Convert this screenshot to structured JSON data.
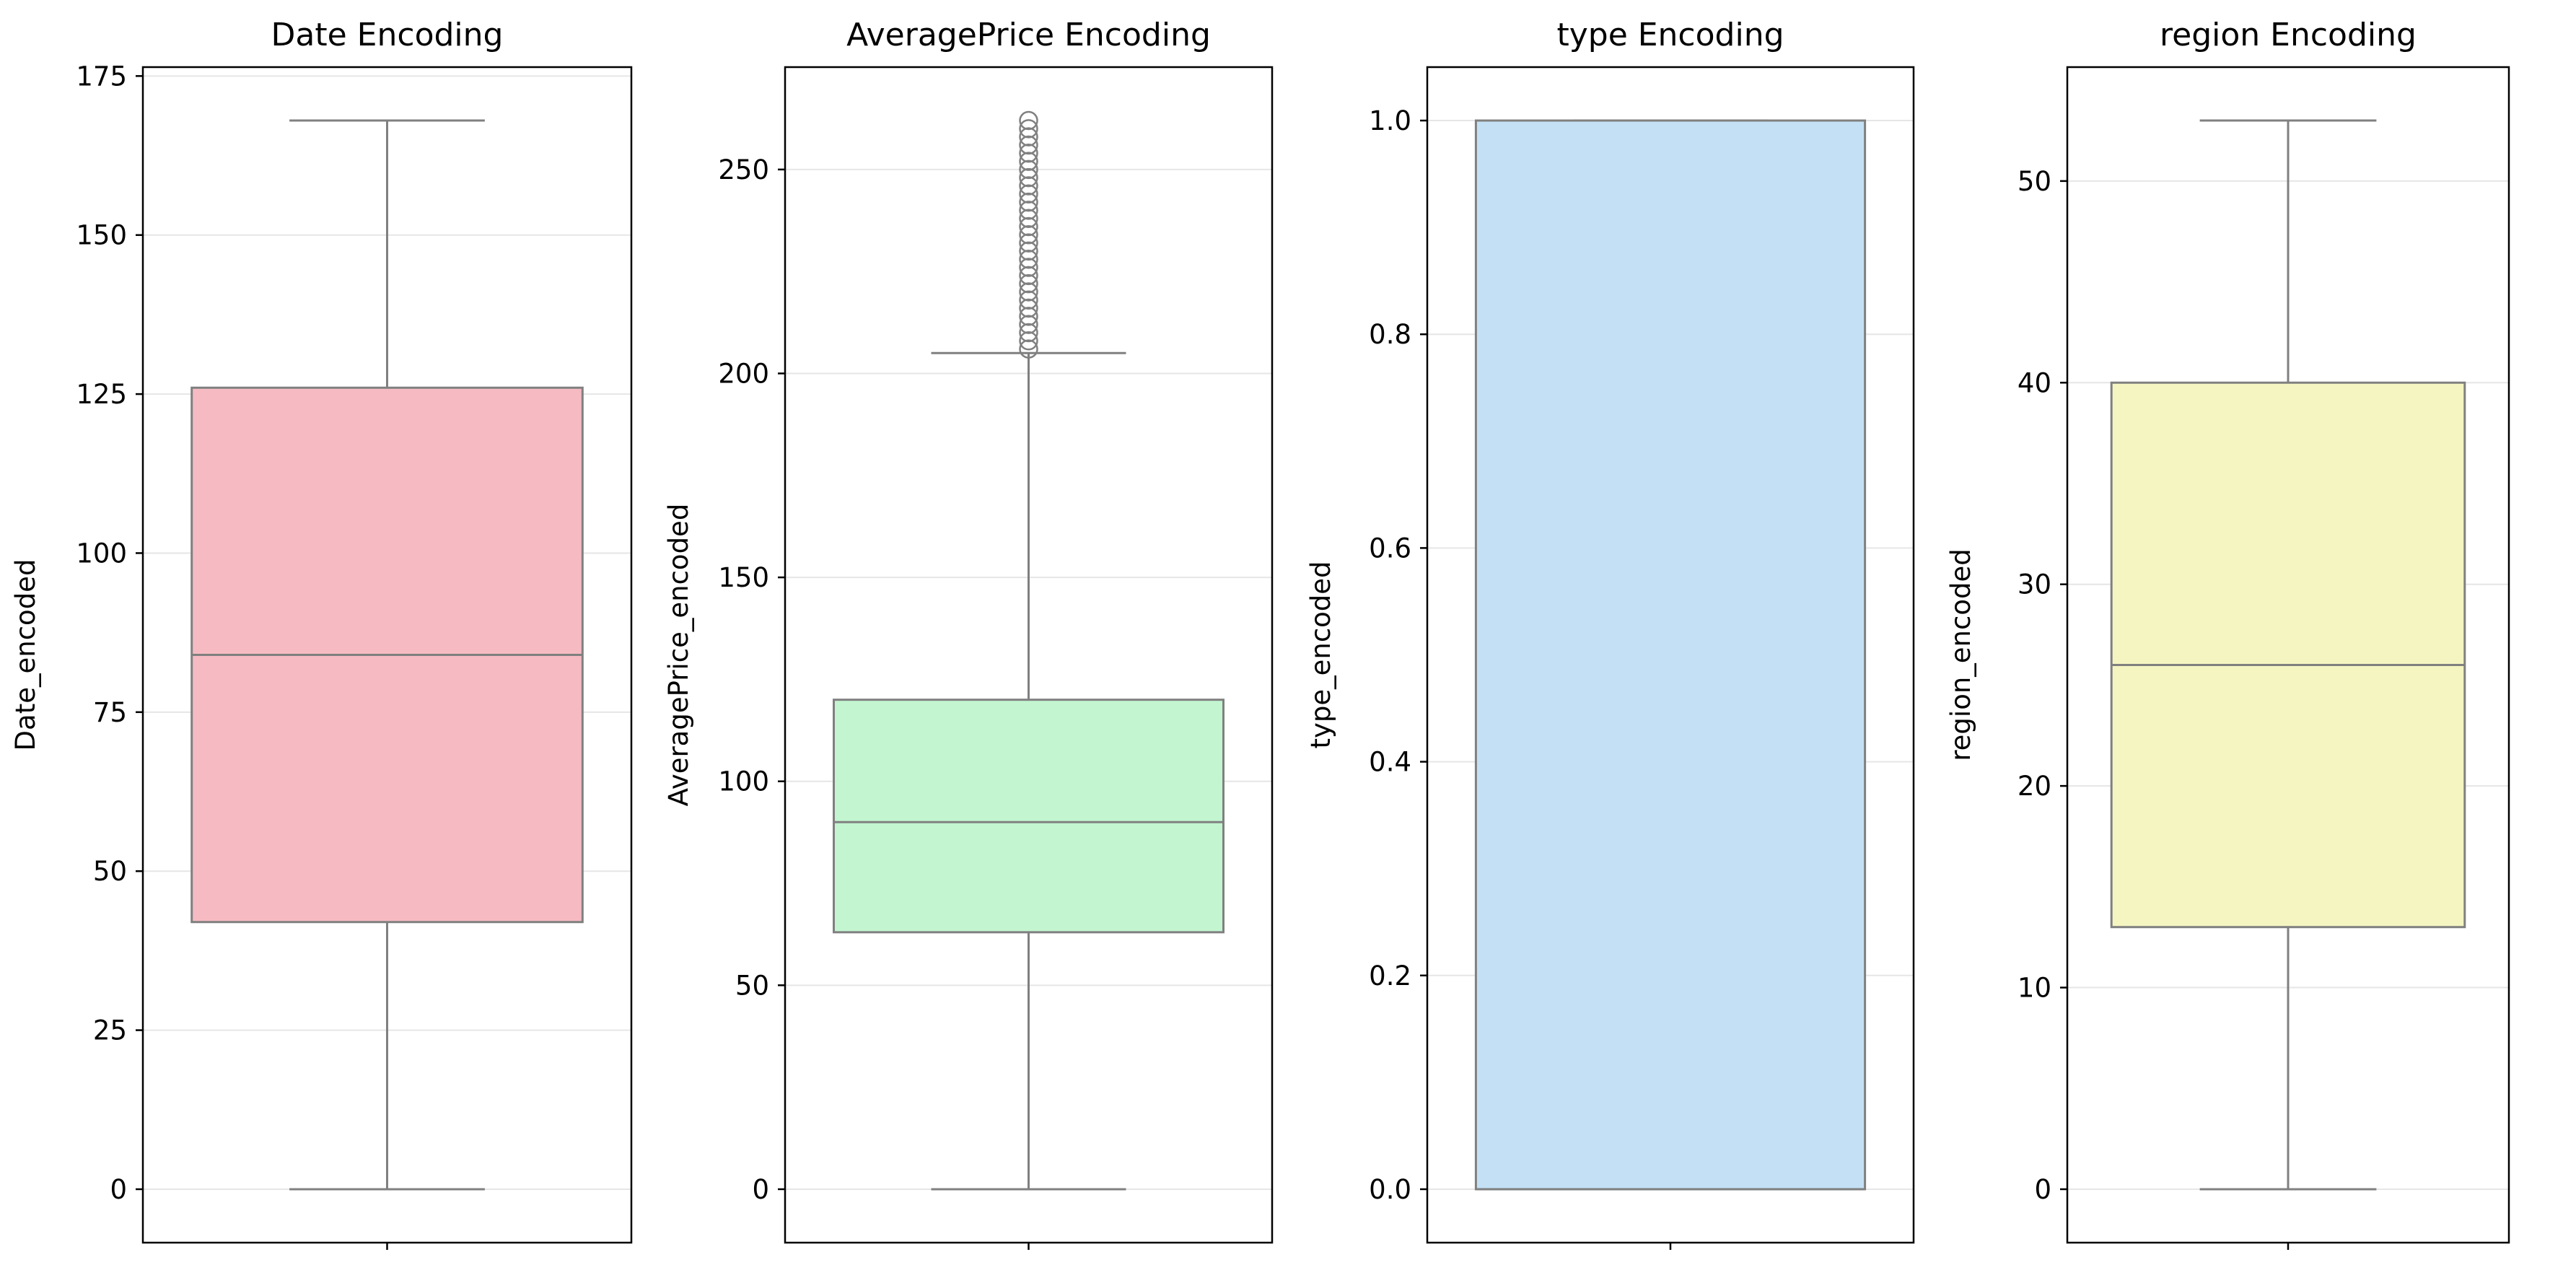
{
  "chart_data": [
    {
      "type": "box",
      "title": "Date Encoding",
      "xlabel": "",
      "ylabel": "Date_encoded",
      "ylim": [
        -8.4,
        176.4
      ],
      "yticks": [
        0,
        25,
        50,
        75,
        100,
        125,
        150,
        175
      ],
      "grid": true,
      "color": "#f6bbc2",
      "box": {
        "whisker_low": 0,
        "q1": 42,
        "median": 84,
        "q3": 126,
        "whisker_high": 168
      },
      "outliers": []
    },
    {
      "type": "box",
      "title": "AveragePrice Encoding",
      "xlabel": "",
      "ylabel": "AveragePrice_encoded",
      "ylim": [
        -13.1,
        275.1
      ],
      "yticks": [
        0,
        50,
        100,
        150,
        200,
        250
      ],
      "grid": true,
      "color": "#c2f5d0",
      "box": {
        "whisker_low": 0,
        "q1": 63,
        "median": 90,
        "q3": 120,
        "whisker_high": 205
      },
      "outliers": [
        206,
        208,
        210,
        212,
        214,
        216,
        218,
        220,
        222,
        224,
        226,
        228,
        230,
        232,
        234,
        236,
        238,
        240,
        242,
        244,
        246,
        248,
        250,
        252,
        254,
        256,
        258,
        260,
        262
      ]
    },
    {
      "type": "box",
      "title": "type Encoding",
      "xlabel": "",
      "ylabel": "type_encoded",
      "ylim": [
        -0.05,
        1.05
      ],
      "yticks": [
        "0.0",
        "0.2",
        "0.4",
        "0.6",
        "0.8",
        "1.0"
      ],
      "grid": true,
      "color": "#c4e0f5",
      "box": {
        "whisker_low": 0,
        "q1": 0,
        "median": 0,
        "q3": 1,
        "whisker_high": 1
      },
      "outliers": []
    },
    {
      "type": "box",
      "title": "region Encoding",
      "xlabel": "",
      "ylabel": "region_encoded",
      "ylim": [
        -2.65,
        55.65
      ],
      "yticks": [
        0,
        10,
        20,
        30,
        40,
        50
      ],
      "grid": true,
      "color": "#f5f5c2",
      "box": {
        "whisker_low": 0,
        "q1": 13,
        "median": 26,
        "q3": 40,
        "whisker_high": 53
      },
      "outliers": []
    }
  ]
}
